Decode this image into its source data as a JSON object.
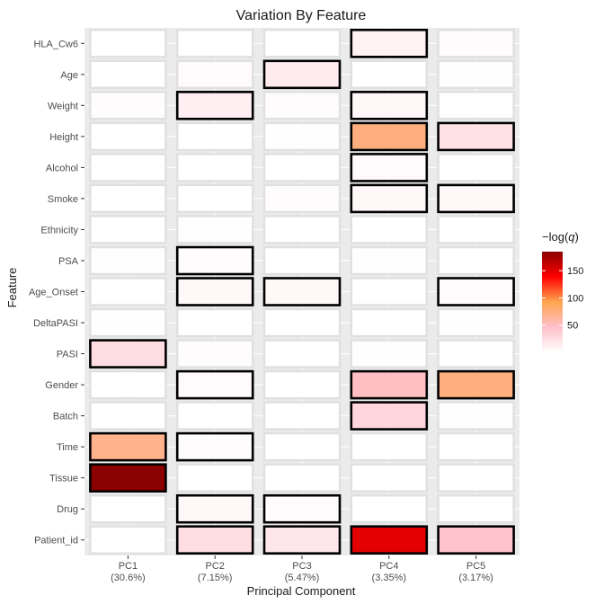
{
  "chart_data": {
    "type": "heatmap",
    "title": "Variation By Feature",
    "xlabel": "Principal Component",
    "ylabel": "Feature",
    "x_categories": [
      {
        "label": "PC1",
        "sublabel": "(30.6%)"
      },
      {
        "label": "PC2",
        "sublabel": "(7.15%)"
      },
      {
        "label": "PC3",
        "sublabel": "(5.47%)"
      },
      {
        "label": "PC4",
        "sublabel": "(3.35%)"
      },
      {
        "label": "PC5",
        "sublabel": "(3.17%)"
      }
    ],
    "y_categories": [
      "HLA_Cw6",
      "Age",
      "Weight",
      "Height",
      "Alcohol",
      "Smoke",
      "Ethnicity",
      "PSA",
      "Age_Onset",
      "DeltaPASI",
      "PASI",
      "Gender",
      "Batch",
      "Time",
      "Tissue",
      "Drug",
      "Patient_id"
    ],
    "values": [
      [
        0,
        0,
        0,
        10,
        2
      ],
      [
        0,
        3,
        15,
        0,
        1
      ],
      [
        2,
        12,
        2,
        6,
        0
      ],
      [
        0,
        0,
        1,
        75,
        22
      ],
      [
        0,
        0,
        0,
        4,
        0
      ],
      [
        0,
        0,
        2,
        6,
        5
      ],
      [
        0,
        1,
        0,
        0,
        0
      ],
      [
        1,
        2,
        0,
        1,
        0
      ],
      [
        0,
        5,
        5,
        0,
        4
      ],
      [
        1,
        0,
        0,
        0,
        1
      ],
      [
        25,
        2,
        0,
        1,
        0
      ],
      [
        0,
        3,
        0,
        50,
        75
      ],
      [
        0,
        0,
        0,
        30,
        1
      ],
      [
        70,
        2,
        0,
        0,
        0
      ],
      [
        185,
        0,
        0,
        0,
        0
      ],
      [
        0,
        5,
        4,
        0,
        0
      ],
      [
        0,
        25,
        18,
        150,
        45
      ]
    ],
    "significant": [
      [
        false,
        false,
        false,
        true,
        false
      ],
      [
        false,
        false,
        true,
        false,
        false
      ],
      [
        false,
        true,
        false,
        true,
        false
      ],
      [
        false,
        false,
        false,
        true,
        true
      ],
      [
        false,
        false,
        false,
        true,
        false
      ],
      [
        false,
        false,
        false,
        true,
        true
      ],
      [
        false,
        false,
        false,
        false,
        false
      ],
      [
        false,
        true,
        false,
        false,
        false
      ],
      [
        false,
        true,
        true,
        false,
        true
      ],
      [
        false,
        false,
        false,
        false,
        false
      ],
      [
        true,
        false,
        false,
        false,
        false
      ],
      [
        false,
        true,
        false,
        true,
        true
      ],
      [
        false,
        false,
        false,
        true,
        false
      ],
      [
        true,
        true,
        false,
        false,
        false
      ],
      [
        true,
        false,
        false,
        false,
        false
      ],
      [
        false,
        true,
        true,
        false,
        false
      ],
      [
        false,
        true,
        true,
        true,
        true
      ]
    ],
    "legend": {
      "title": "-log(q)",
      "ticks": [
        50,
        100,
        150
      ],
      "range": [
        0,
        185
      ],
      "placement": "right"
    },
    "colors": {
      "gradient": [
        "#ffffff",
        "#ffc0cb",
        "#ffa54f",
        "#ff0000",
        "#8b0000"
      ],
      "panel_background": "#ebebeb",
      "grid": "#ffffff",
      "significant_border": "#000000",
      "other_border": "#e0e0e0"
    }
  }
}
